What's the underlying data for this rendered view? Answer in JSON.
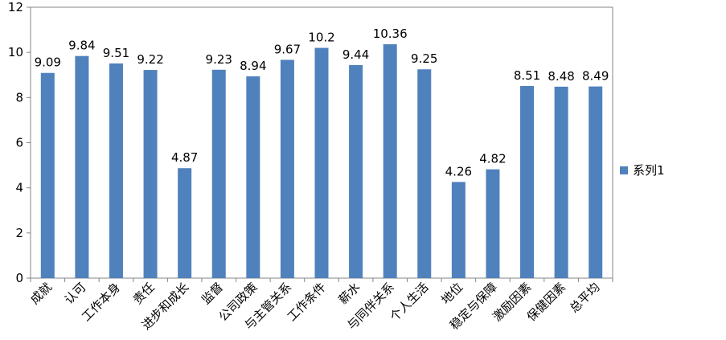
{
  "chart_data": {
    "type": "bar",
    "categories": [
      "成就",
      "认可",
      "工作本身",
      "责任",
      "进步和成长",
      "监督",
      "公司政策",
      "与主管关系",
      "工作条件",
      "薪水",
      "与同伴关系",
      "个人生活",
      "地位",
      "稳定与保障",
      "激励因素",
      "保健因素",
      "总平均"
    ],
    "series": [
      {
        "name": "系列1",
        "values": [
          9.09,
          9.84,
          9.51,
          9.22,
          4.87,
          9.23,
          8.94,
          9.67,
          10.2,
          9.44,
          10.36,
          9.25,
          4.26,
          4.82,
          8.51,
          8.48,
          8.49
        ],
        "labels": [
          "9.09",
          "9.84",
          "9.51",
          "9.22",
          "4.87",
          "9.23",
          "8.94",
          "9.67",
          "10.2",
          "9.44",
          "10.36",
          "9.25",
          "4.26",
          "4.82",
          "8.51",
          "8.48",
          "8.49"
        ]
      }
    ],
    "yticks": [
      "0",
      "2",
      "4",
      "6",
      "8",
      "10",
      "12"
    ],
    "ylim": [
      0,
      12
    ],
    "grid": false,
    "legend": "right",
    "colors": {
      "bar": "#4F81BD",
      "axis": "#868686"
    }
  }
}
